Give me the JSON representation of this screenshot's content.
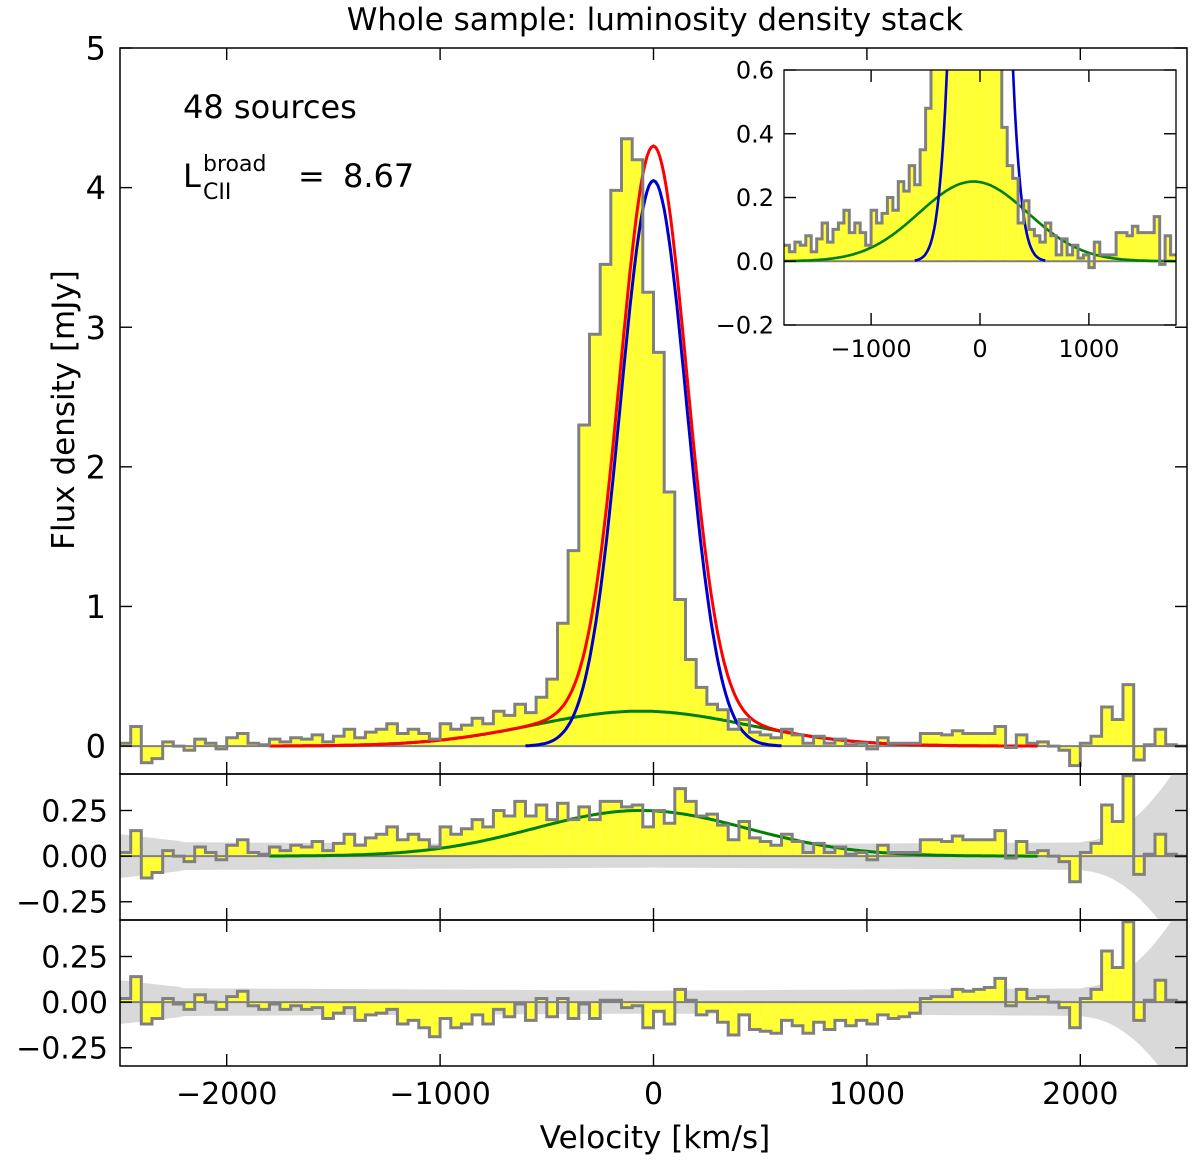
{
  "chart_data": {
    "type": "line",
    "title": "Whole sample: luminosity density stack",
    "xlabel": "Velocity [km/s]",
    "ylabel": "Flux density [mJy]",
    "xlim": [
      -2500,
      2500
    ],
    "xticks": [
      -2000,
      -1000,
      0,
      1000,
      2000
    ],
    "xtick_labels": [
      "−2000",
      "−1000",
      "0",
      "1000",
      "2000"
    ],
    "bin_width_kms": 50,
    "annotations": {
      "n_sources": "48 sources",
      "lum_label_base": "L",
      "lum_label_sub": "CII",
      "lum_label_sup": "broad",
      "lum_label_eq": "=",
      "lum_value": "8.67"
    },
    "main_panel": {
      "ylim": [
        -0.2,
        5
      ],
      "yticks": [
        0,
        1,
        2,
        3,
        4,
        5
      ],
      "ytick_labels": [
        "0",
        "1",
        "2",
        "3",
        "4",
        "5"
      ],
      "legend": "none",
      "series": [
        {
          "name": "stacked spectrum",
          "style": "gray steps, yellow fill",
          "color": "#808080",
          "x": [
            -2500,
            -2450,
            -2400,
            -2350,
            -2300,
            -2250,
            -2200,
            -2150,
            -2100,
            -2050,
            -2000,
            -1950,
            -1900,
            -1850,
            -1800,
            -1750,
            -1700,
            -1650,
            -1600,
            -1550,
            -1500,
            -1450,
            -1400,
            -1350,
            -1300,
            -1250,
            -1200,
            -1150,
            -1100,
            -1050,
            -1000,
            -950,
            -900,
            -850,
            -800,
            -750,
            -700,
            -650,
            -600,
            -550,
            -500,
            -450,
            -400,
            -350,
            -300,
            -250,
            -200,
            -150,
            -100,
            -50,
            0,
            50,
            100,
            150,
            200,
            250,
            300,
            350,
            400,
            450,
            500,
            550,
            600,
            650,
            700,
            750,
            800,
            850,
            900,
            950,
            1000,
            1050,
            1100,
            1150,
            1200,
            1250,
            1300,
            1350,
            1400,
            1450,
            1500,
            1550,
            1600,
            1650,
            1700,
            1750,
            1800,
            1850,
            1900,
            1950,
            2000,
            2050,
            2100,
            2150,
            2200,
            2250,
            2300,
            2350,
            2400,
            2450
          ],
          "values": [
            0.02,
            0.14,
            -0.12,
            -0.09,
            0.03,
            0.0,
            -0.03,
            0.05,
            0.02,
            -0.02,
            0.06,
            0.09,
            0.02,
            0.01,
            0.05,
            0.03,
            0.06,
            0.05,
            0.08,
            0.03,
            0.07,
            0.12,
            0.06,
            0.1,
            0.12,
            0.16,
            0.09,
            0.12,
            0.09,
            0.05,
            0.16,
            0.12,
            0.15,
            0.2,
            0.16,
            0.25,
            0.22,
            0.3,
            0.24,
            0.35,
            0.48,
            0.88,
            1.4,
            2.3,
            2.95,
            3.45,
            3.98,
            4.35,
            4.2,
            3.25,
            2.82,
            1.82,
            1.05,
            0.62,
            0.42,
            0.3,
            0.26,
            0.12,
            0.19,
            0.1,
            0.08,
            0.06,
            0.12,
            0.08,
            0.02,
            0.07,
            0.02,
            0.05,
            0.01,
            0.02,
            -0.02,
            0.06,
            0.02,
            0.02,
            0.02,
            0.09,
            0.09,
            0.08,
            0.11,
            0.09,
            0.09,
            0.09,
            0.14,
            -0.01,
            0.08,
            0.02,
            0.03,
            0.0,
            -0.03,
            -0.14,
            0.02,
            0.07,
            0.28,
            0.19,
            0.44,
            -0.1,
            0.01,
            0.12,
            0.01,
            0.0
          ]
        },
        {
          "name": "total fit",
          "color": "#ff0000",
          "components": "narrow + broad"
        },
        {
          "name": "narrow component",
          "color": "#0000cc",
          "amplitude": 4.05,
          "center_kms": 0,
          "sigma_kms": 155
        },
        {
          "name": "broad component",
          "color": "#008000",
          "amplitude": 0.25,
          "center_kms": -60,
          "sigma_kms": 500
        }
      ]
    },
    "inset": {
      "xlim": [
        -1800,
        1800
      ],
      "ylim": [
        -0.2,
        0.6
      ],
      "xticks": [
        -1000,
        0,
        1000
      ],
      "xtick_labels": [
        "−1000",
        "0",
        "1000"
      ],
      "yticks": [
        -0.2,
        0.0,
        0.2,
        0.4,
        0.6
      ],
      "ytick_labels": [
        "−0.2",
        "0.0",
        "0.2",
        "0.4",
        "0.6"
      ]
    },
    "residual_panels": [
      {
        "name": "broad residual (data minus narrow)",
        "ylim": [
          -0.35,
          0.45
        ],
        "yticks": [
          -0.25,
          0.0,
          0.25
        ],
        "ytick_labels": [
          "−0.25",
          "0.00",
          "0.25"
        ],
        "values": [
          0.02,
          0.14,
          -0.12,
          -0.09,
          0.03,
          0.0,
          -0.03,
          0.05,
          0.02,
          -0.02,
          0.06,
          0.09,
          0.02,
          0.01,
          0.05,
          0.03,
          0.06,
          0.05,
          0.08,
          0.03,
          0.07,
          0.12,
          0.06,
          0.1,
          0.12,
          0.16,
          0.09,
          0.12,
          0.09,
          0.05,
          0.16,
          0.12,
          0.15,
          0.2,
          0.16,
          0.25,
          0.22,
          0.3,
          0.22,
          0.28,
          0.2,
          0.29,
          0.2,
          0.27,
          0.2,
          0.3,
          0.3,
          0.27,
          0.28,
          0.16,
          0.25,
          0.18,
          0.37,
          0.3,
          0.22,
          0.23,
          0.17,
          0.09,
          0.19,
          0.1,
          0.08,
          0.06,
          0.12,
          0.08,
          0.02,
          0.07,
          0.02,
          0.05,
          0.01,
          0.02,
          -0.02,
          0.06,
          0.02,
          0.02,
          0.02,
          0.09,
          0.09,
          0.08,
          0.11,
          0.09,
          0.09,
          0.09,
          0.14,
          -0.01,
          0.08,
          0.02,
          0.03,
          0.0,
          -0.03,
          -0.14,
          0.02,
          0.07,
          0.28,
          0.19,
          0.44,
          -0.1,
          0.01,
          0.12,
          0.01,
          0.0
        ],
        "band": "±1σ noise, grey"
      },
      {
        "name": "total residual (data minus full fit)",
        "ylim": [
          -0.35,
          0.45
        ],
        "yticks": [
          -0.25,
          0.0,
          0.25
        ],
        "ytick_labels": [
          "−0.25",
          "0.00",
          "0.25"
        ],
        "values": [
          0.02,
          0.14,
          -0.12,
          -0.09,
          0.02,
          -0.01,
          -0.04,
          0.04,
          0.0,
          -0.04,
          0.03,
          0.06,
          -0.02,
          -0.04,
          -0.01,
          -0.04,
          -0.02,
          -0.04,
          -0.03,
          -0.09,
          -0.06,
          -0.03,
          -0.1,
          -0.07,
          -0.06,
          -0.04,
          -0.12,
          -0.1,
          -0.14,
          -0.19,
          -0.09,
          -0.14,
          -0.12,
          -0.07,
          -0.12,
          -0.04,
          -0.08,
          -0.01,
          -0.1,
          0.02,
          -0.08,
          0.02,
          -0.09,
          -0.01,
          -0.09,
          0.01,
          0.01,
          -0.03,
          -0.02,
          -0.14,
          -0.05,
          -0.12,
          0.07,
          0.01,
          -0.07,
          -0.05,
          -0.11,
          -0.18,
          -0.07,
          -0.15,
          -0.16,
          -0.17,
          -0.1,
          -0.13,
          -0.17,
          -0.11,
          -0.15,
          -0.1,
          -0.13,
          -0.1,
          -0.12,
          -0.07,
          -0.09,
          -0.08,
          -0.06,
          0.02,
          0.03,
          0.03,
          0.07,
          0.06,
          0.07,
          0.08,
          0.13,
          -0.02,
          0.07,
          0.02,
          0.03,
          0.0,
          -0.03,
          -0.14,
          0.02,
          0.07,
          0.28,
          0.19,
          0.44,
          -0.1,
          0.01,
          0.12,
          0.01,
          0.0
        ],
        "band": "±1σ noise, grey"
      }
    ]
  }
}
